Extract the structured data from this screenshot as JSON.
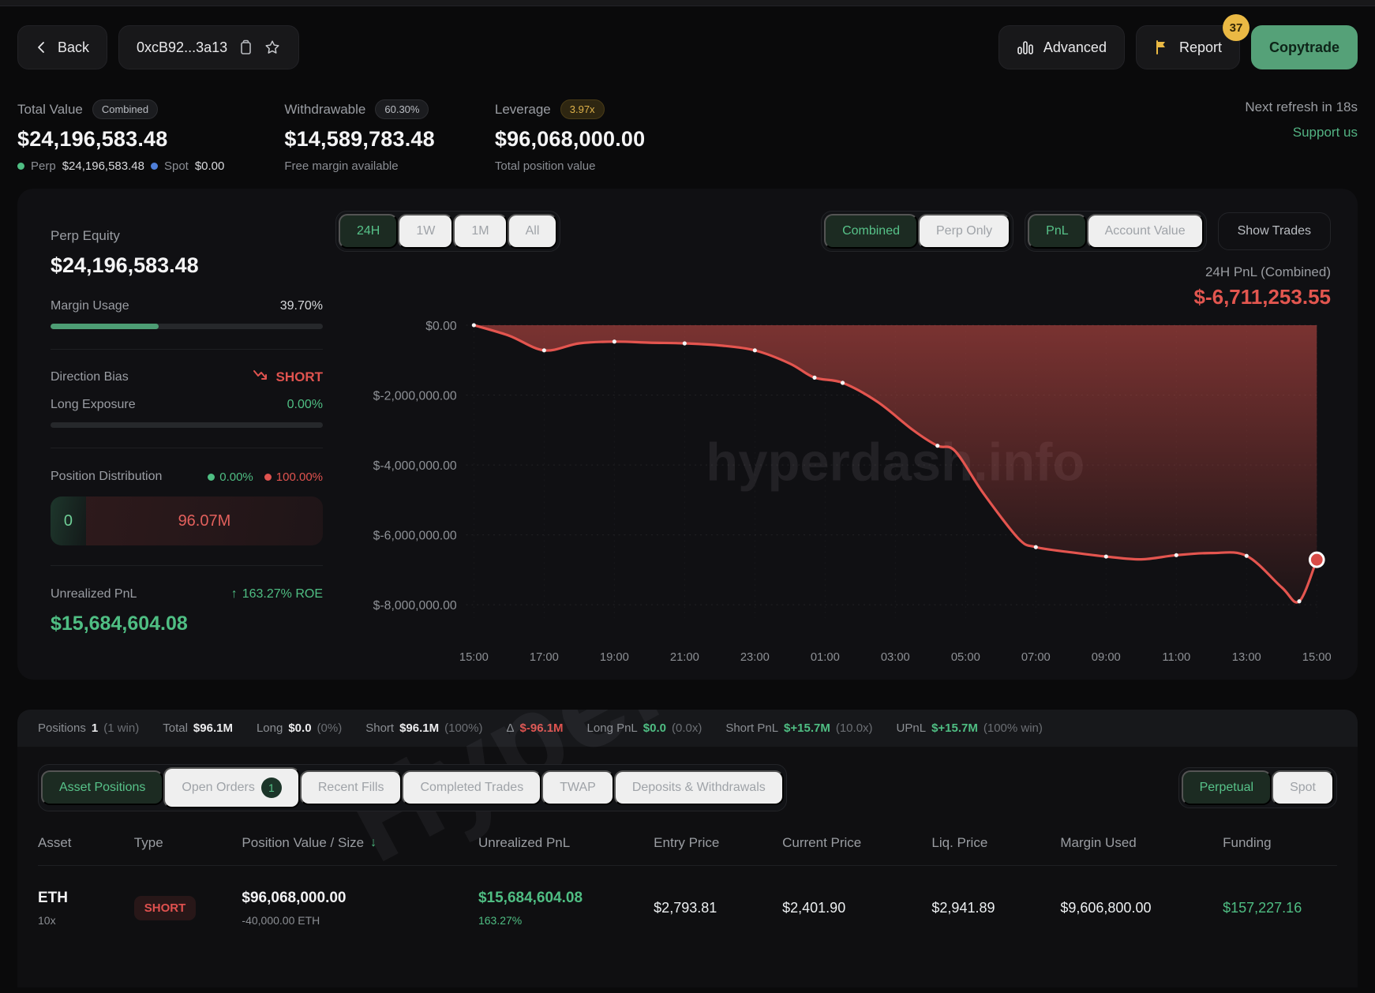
{
  "colors": {
    "green": "#4fbe83",
    "red": "#e0534f",
    "gold": "#eab944",
    "blue": "#4f7fd9",
    "line": "#e4554f"
  },
  "header": {
    "back_label": "Back",
    "address": "0xcB92...3a13",
    "advanced_label": "Advanced",
    "report_label": "Report",
    "report_badge": "37",
    "copytrade_label": "Copytrade",
    "next_refresh": "Next refresh in 18s",
    "support_us": "Support us"
  },
  "stats": [
    {
      "label": "Total Value",
      "chip": "Combined",
      "chip_style": "",
      "value": "$24,196,583.48",
      "sub_parts": [
        {
          "dot": "#4fbe83",
          "label": "Perp",
          "value": "$24,196,583.48"
        },
        {
          "dot": "#4f7fd9",
          "label": "Spot",
          "value": "$0.00"
        }
      ]
    },
    {
      "label": "Withdrawable",
      "chip": "60.30%",
      "chip_style": "",
      "value": "$14,589,783.48",
      "sub": "Free margin available"
    },
    {
      "label": "Leverage",
      "chip": "3.97x",
      "chip_style": "gold",
      "value": "$96,068,000.00",
      "sub": "Total position value"
    }
  ],
  "panel": {
    "perp_equity_label": "Perp Equity",
    "perp_equity_value": "$24,196,583.48",
    "margin_usage_label": "Margin Usage",
    "margin_usage_value": "39.70%",
    "margin_usage_pct": 39.7,
    "direction_bias_label": "Direction Bias",
    "direction_bias_value": "SHORT",
    "long_exposure_label": "Long Exposure",
    "long_exposure_value": "0.00%",
    "long_exposure_pct": 0,
    "position_distribution_label": "Position Distribution",
    "dist_long_pct": "0.00%",
    "dist_short_pct": "100.00%",
    "dist_bar_left": "0",
    "dist_bar_left_width_pct": 13,
    "dist_bar_right": "96.07M",
    "unrealized_pnl_label": "Unrealized PnL",
    "roe": "163.27% ROE",
    "unrealized_pnl_value": "$15,684,604.08"
  },
  "chart": {
    "range_tabs": [
      {
        "label": "24H",
        "active": true
      },
      {
        "label": "1W"
      },
      {
        "label": "1M"
      },
      {
        "label": "All"
      }
    ],
    "mode_tabs": [
      {
        "label": "Combined",
        "active": true
      },
      {
        "label": "Perp Only"
      }
    ],
    "view_tabs": [
      {
        "label": "PnL",
        "active": true
      },
      {
        "label": "Account Value"
      }
    ],
    "show_trades": "Show Trades",
    "pnl_label": "24H PnL (Combined)",
    "pnl_value": "$-6,711,253.55",
    "watermark": "hyperdash.info"
  },
  "chart_data": {
    "type": "area",
    "title": "24H PnL (Combined)",
    "x_hours": [
      0,
      1,
      2,
      3,
      4,
      5,
      6,
      7,
      8,
      9,
      9.7,
      10.5,
      11.5,
      12.5,
      13.2,
      13.7,
      14.5,
      15.5,
      16,
      17,
      18,
      19,
      20,
      21,
      22,
      23,
      23.5,
      24
    ],
    "values": [
      0,
      -300000,
      -720000,
      -520000,
      -470000,
      -500000,
      -520000,
      -580000,
      -720000,
      -1100000,
      -1500000,
      -1650000,
      -2200000,
      -3000000,
      -3450000,
      -3600000,
      -4800000,
      -6100000,
      -6350000,
      -6500000,
      -6620000,
      -6700000,
      -6580000,
      -6520000,
      -6600000,
      -7500000,
      -7900000,
      -6711253.55
    ],
    "marker_hours": [
      0,
      2,
      4,
      6,
      8,
      9.7,
      10.5,
      13.2,
      16,
      18,
      20,
      22,
      23.5
    ],
    "end_value": -6711253.55,
    "x_tick_labels": [
      "15:00",
      "17:00",
      "19:00",
      "21:00",
      "23:00",
      "01:00",
      "03:00",
      "05:00",
      "07:00",
      "09:00",
      "11:00",
      "13:00",
      "15:00"
    ],
    "y_ticks": [
      0,
      -2000000,
      -4000000,
      -6000000,
      -8000000
    ],
    "y_tick_labels": [
      "$0.00",
      "$-2,000,000.00",
      "$-4,000,000.00",
      "$-6,000,000.00",
      "$-8,000,000.00"
    ],
    "ylim": [
      -8600000,
      0
    ],
    "grid": "dotted",
    "legend": "none"
  },
  "summary": {
    "items": [
      {
        "label": "Positions",
        "value": "1",
        "suffix": "(1 win)",
        "color": "white"
      },
      {
        "label": "Total",
        "value": "$96.1M",
        "suffix": "",
        "color": "white"
      },
      {
        "label": "Long",
        "value": "$0.0",
        "suffix": "(0%)",
        "color": "white"
      },
      {
        "label": "Short",
        "value": "$96.1M",
        "suffix": "(100%)",
        "color": "white"
      },
      {
        "label": "Δ",
        "value": "$-96.1M",
        "suffix": "",
        "color": "red"
      },
      {
        "label": "Long PnL",
        "value": "$0.0",
        "suffix": "(0.0x)",
        "color": "green"
      },
      {
        "label": "Short PnL",
        "value": "$+15.7M",
        "suffix": "(10.0x)",
        "color": "green"
      },
      {
        "label": "UPnL",
        "value": "$+15.7M",
        "suffix": "(100% win)",
        "color": "green"
      }
    ]
  },
  "table_tabs": [
    {
      "label": "Asset Positions",
      "active": true
    },
    {
      "label": "Open Orders",
      "badge": "1"
    },
    {
      "label": "Recent Fills"
    },
    {
      "label": "Completed Trades"
    },
    {
      "label": "TWAP"
    },
    {
      "label": "Deposits & Withdrawals"
    }
  ],
  "market_toggle": [
    {
      "label": "Perpetual",
      "active": true
    },
    {
      "label": "Spot"
    }
  ],
  "positions_table": {
    "columns": [
      "Asset",
      "Type",
      "Position Value / Size",
      "Unrealized PnL",
      "Entry Price",
      "Current Price",
      "Liq. Price",
      "Margin Used",
      "Funding"
    ],
    "sort_column_index": 2,
    "rows": [
      {
        "asset": "ETH",
        "leverage": "10x",
        "type": "SHORT",
        "position_value": "$96,068,000.00",
        "size": "-40,000.00 ETH",
        "unrealized_pnl": "$15,684,604.08",
        "roe": "163.27%",
        "entry_price": "$2,793.81",
        "current_price": "$2,401.90",
        "liq_price": "$2,941.89",
        "margin_used": "$9,606,800.00",
        "funding": "$157,227.16"
      }
    ]
  },
  "watermark_bottom": "Hyperdash"
}
